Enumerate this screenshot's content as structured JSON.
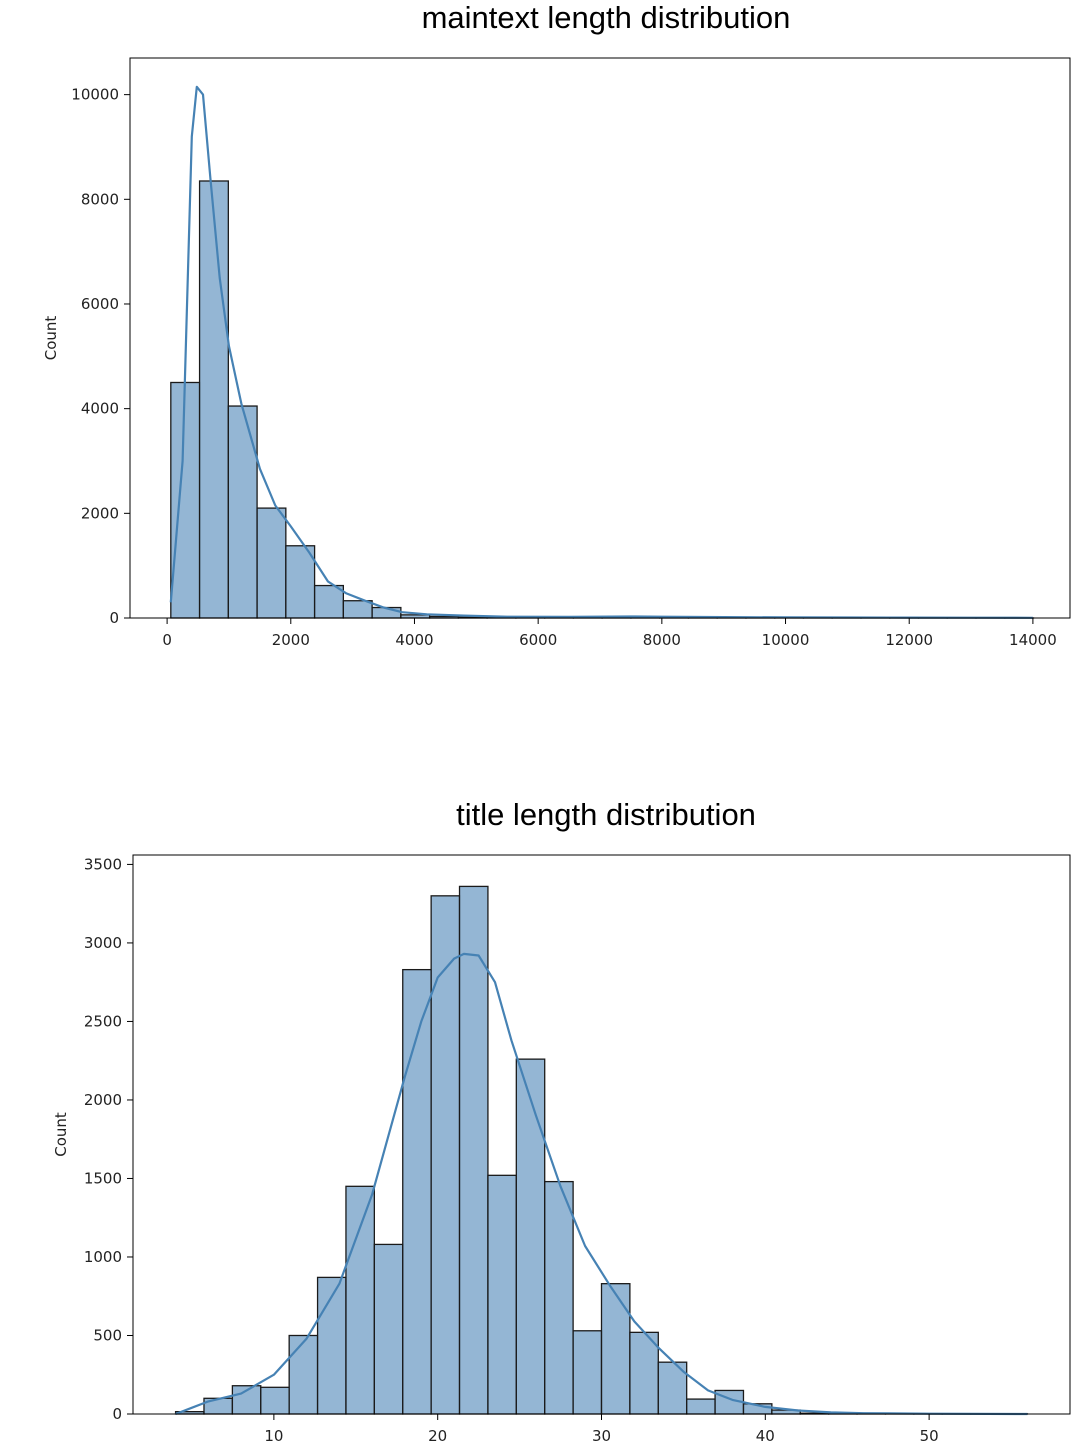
{
  "chart_data": [
    {
      "type": "bar",
      "subtype": "histogram-with-kde",
      "title": "maintext length distribution",
      "xlabel": "",
      "ylabel": "Count",
      "xlim": [
        -600,
        14600
      ],
      "ylim": [
        0,
        10700
      ],
      "xticks": [
        0,
        2000,
        4000,
        6000,
        8000,
        10000,
        12000,
        14000
      ],
      "yticks": [
        0,
        2000,
        4000,
        6000,
        8000,
        10000
      ],
      "bar_color": "#6b9ac4",
      "edge_color": "#1a1a1a",
      "kde_color": "#4682b4",
      "bin_edges": [
        60,
        525,
        990,
        1455,
        1920,
        2385,
        2850,
        3315,
        3780,
        4245,
        4710,
        5175,
        5640,
        6105,
        6570,
        7035,
        7500,
        7965,
        8430,
        8895,
        9360,
        9825,
        10290,
        10755,
        11220,
        11685,
        12150,
        12615,
        13080,
        13545,
        14010
      ],
      "values": [
        4500,
        8350,
        4050,
        2100,
        1380,
        620,
        330,
        200,
        60,
        30,
        15,
        10,
        8,
        5,
        4,
        4,
        4,
        3,
        2,
        2,
        1,
        1,
        1,
        1,
        1,
        1,
        1,
        1,
        1,
        1
      ],
      "kde": [
        [
          60,
          300
        ],
        [
          250,
          3000
        ],
        [
          400,
          9200
        ],
        [
          480,
          10150
        ],
        [
          580,
          10000
        ],
        [
          700,
          8400
        ],
        [
          850,
          6500
        ],
        [
          1000,
          5200
        ],
        [
          1200,
          4100
        ],
        [
          1500,
          2850
        ],
        [
          1750,
          2150
        ],
        [
          2000,
          1750
        ],
        [
          2300,
          1250
        ],
        [
          2600,
          700
        ],
        [
          2900,
          470
        ],
        [
          3200,
          330
        ],
        [
          3500,
          200
        ],
        [
          3800,
          110
        ],
        [
          4200,
          70
        ],
        [
          4800,
          45
        ],
        [
          5500,
          25
        ],
        [
          6500,
          22
        ],
        [
          7500,
          28
        ],
        [
          8000,
          25
        ],
        [
          9000,
          18
        ],
        [
          10000,
          12
        ],
        [
          11000,
          10
        ],
        [
          12000,
          8
        ],
        [
          13000,
          6
        ],
        [
          14000,
          4
        ]
      ]
    },
    {
      "type": "bar",
      "subtype": "histogram-with-kde",
      "title": "title length distribution",
      "xlabel": "",
      "ylabel": "Count",
      "xlim": [
        1.4,
        58.6
      ],
      "ylim": [
        0,
        3560
      ],
      "xticks": [
        10,
        20,
        30,
        40,
        50
      ],
      "yticks": [
        0,
        500,
        1000,
        1500,
        2000,
        2500,
        3000,
        3500
      ],
      "bar_color": "#6b9ac4",
      "edge_color": "#1a1a1a",
      "kde_color": "#4682b4",
      "bin_edges": [
        4.0,
        5.733,
        7.467,
        9.2,
        10.933,
        12.667,
        14.4,
        16.133,
        17.867,
        19.6,
        21.333,
        23.067,
        24.8,
        26.533,
        28.267,
        30.0,
        31.733,
        33.467,
        35.2,
        36.933,
        38.667,
        40.4,
        42.133,
        43.867,
        45.6,
        47.333,
        49.067,
        50.8,
        52.533,
        54.267,
        56.0
      ],
      "values": [
        15,
        100,
        180,
        170,
        500,
        870,
        1450,
        1080,
        2830,
        3300,
        3360,
        1520,
        2260,
        1480,
        530,
        830,
        520,
        330,
        95,
        150,
        65,
        25,
        5,
        3,
        2,
        1,
        1,
        1,
        1,
        1
      ],
      "kde": [
        [
          4,
          0
        ],
        [
          5,
          40
        ],
        [
          6,
          80
        ],
        [
          8,
          130
        ],
        [
          10,
          250
        ],
        [
          12,
          480
        ],
        [
          14,
          830
        ],
        [
          16,
          1400
        ],
        [
          18,
          2150
        ],
        [
          19,
          2500
        ],
        [
          20,
          2780
        ],
        [
          21,
          2900
        ],
        [
          21.6,
          2930
        ],
        [
          22.5,
          2920
        ],
        [
          23.5,
          2750
        ],
        [
          24.5,
          2380
        ],
        [
          26,
          1900
        ],
        [
          27.5,
          1450
        ],
        [
          29,
          1070
        ],
        [
          30.5,
          820
        ],
        [
          32,
          590
        ],
        [
          33.5,
          420
        ],
        [
          35,
          270
        ],
        [
          36.5,
          150
        ],
        [
          38,
          90
        ],
        [
          40,
          45
        ],
        [
          42,
          22
        ],
        [
          44,
          10
        ],
        [
          46,
          5
        ],
        [
          50,
          2
        ],
        [
          56,
          0
        ]
      ]
    }
  ]
}
